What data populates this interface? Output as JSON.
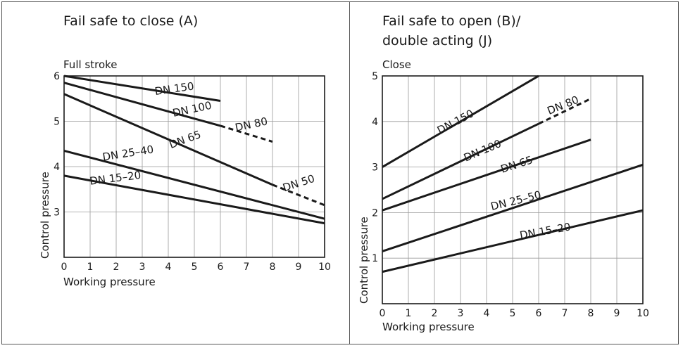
{
  "chart_data": [
    {
      "type": "line",
      "title": "Fail safe to close (A)",
      "xlabel": "Working pressure",
      "ylabel": "Control pressure",
      "top_label": "Full stroke",
      "xlim": [
        0,
        10
      ],
      "ylim": [
        2,
        6
      ],
      "xticks": [
        "0",
        "1",
        "2",
        "3",
        "4",
        "5",
        "6",
        "7",
        "8",
        "9",
        "10"
      ],
      "yticks": [
        "3",
        "4",
        "5",
        "6"
      ],
      "grid": true,
      "series": [
        {
          "name": "DN 150",
          "x": [
            0,
            6
          ],
          "y": [
            6.0,
            5.45
          ],
          "dashed_from": null
        },
        {
          "name": "DN 100",
          "x": [
            0,
            6,
            8
          ],
          "y": [
            5.85,
            4.9,
            4.55
          ],
          "dashed_from": 6
        },
        {
          "name": "DN 65",
          "x": [
            0,
            8,
            10
          ],
          "y": [
            5.6,
            3.6,
            3.15
          ],
          "dashed_from": 8
        },
        {
          "name": "DN 25–40",
          "x": [
            0,
            10
          ],
          "y": [
            4.35,
            2.85
          ],
          "dashed_from": null
        },
        {
          "name": "DN 15–20",
          "x": [
            0,
            10
          ],
          "y": [
            3.8,
            2.75
          ],
          "dashed_from": null
        }
      ],
      "series_labels": {
        "dashed_DN100": "DN 80",
        "dashed_DN65": "DN 50"
      }
    },
    {
      "type": "line",
      "title": "Fail safe to open (B)/ double acting (J)",
      "title_lines": [
        "Fail safe to open (B)/",
        "double acting (J)"
      ],
      "xlabel": "Working pressure",
      "ylabel": "Control pressure",
      "top_label": "Close",
      "xlim": [
        0,
        10
      ],
      "ylim": [
        0,
        5
      ],
      "xticks": [
        "0",
        "1",
        "2",
        "3",
        "4",
        "5",
        "6",
        "7",
        "8",
        "9",
        "10"
      ],
      "yticks": [
        "1",
        "2",
        "3",
        "4",
        "5"
      ],
      "grid": true,
      "series": [
        {
          "name": "DN 150",
          "x": [
            0,
            6
          ],
          "y": [
            3.0,
            5.0
          ],
          "dashed_from": null
        },
        {
          "name": "DN 100",
          "x": [
            0,
            6,
            8
          ],
          "y": [
            2.3,
            3.95,
            4.5
          ],
          "dashed_from": 6
        },
        {
          "name": "DN 65",
          "x": [
            0,
            8
          ],
          "y": [
            2.05,
            3.6
          ],
          "dashed_from": null
        },
        {
          "name": "DN 25–50",
          "x": [
            0,
            10
          ],
          "y": [
            1.15,
            3.05
          ],
          "dashed_from": null
        },
        {
          "name": "DN 15–20",
          "x": [
            0,
            10
          ],
          "y": [
            0.7,
            2.05
          ],
          "dashed_from": null
        }
      ],
      "series_labels": {
        "dashed_DN100": "DN 80"
      }
    }
  ]
}
